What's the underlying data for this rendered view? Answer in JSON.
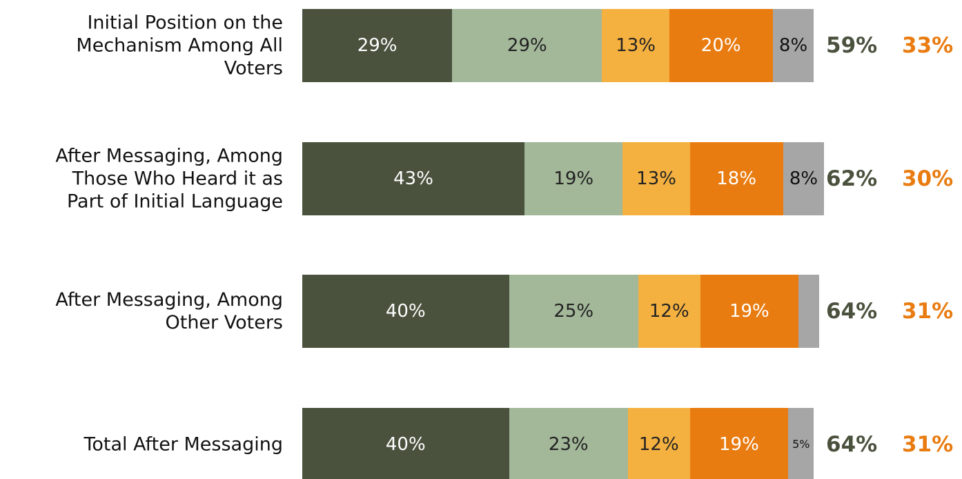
{
  "chart_data": {
    "type": "stacked-barh",
    "categories": [
      "Initial Position on the\nMechanism Among All\nVoters",
      "After Messaging, Among\nThose Who Heard it as\nPart of Initial Language",
      "After Messaging, Among\nOther Voters",
      "Total After Messaging"
    ],
    "xlim": [
      0,
      100
    ],
    "series": [
      {
        "color": "#4a523e",
        "label_color": "#ffffff",
        "values": [
          29,
          43,
          40,
          40
        ],
        "value_labels": [
          "29%",
          "43%",
          "40%",
          "40%"
        ]
      },
      {
        "color": "#a3b799",
        "label_color": "#222222",
        "values": [
          29,
          19,
          25,
          23
        ],
        "value_labels": [
          "29%",
          "19%",
          "25%",
          "23%"
        ]
      },
      {
        "color": "#f5b140",
        "label_color": "#222222",
        "values": [
          13,
          13,
          12,
          12
        ],
        "value_labels": [
          "13%",
          "13%",
          "12%",
          "12%"
        ]
      },
      {
        "color": "#e97c11",
        "label_color": "#ffffff",
        "values": [
          20,
          18,
          19,
          19
        ],
        "value_labels": [
          "20%",
          "18%",
          "19%",
          "19%"
        ]
      },
      {
        "color": "#a6a6a6",
        "label_color": "#111111",
        "values": [
          8,
          8,
          4,
          5
        ],
        "value_labels": [
          "8%",
          "8%",
          null,
          "5%"
        ]
      }
    ],
    "totals": [
      {
        "color": "#4a523e",
        "values": [
          59,
          62,
          64,
          64
        ],
        "value_labels": [
          "59%",
          "62%",
          "64%",
          "64%"
        ]
      },
      {
        "color": "#e97c11",
        "values": [
          33,
          30,
          31,
          31
        ],
        "value_labels": [
          "33%",
          "30%",
          "31%",
          "31%"
        ]
      }
    ]
  }
}
